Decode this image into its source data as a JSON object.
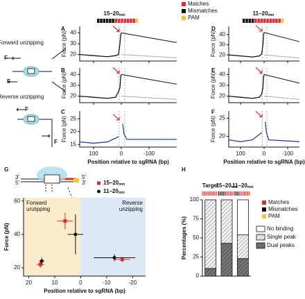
{
  "legend_top": [
    {
      "name": "Matches",
      "color": "#e8262b"
    },
    {
      "name": "Mismatches",
      "color": "#111111"
    },
    {
      "name": "PAM",
      "color": "#f4c431"
    }
  ],
  "schematic": {
    "forward": "Forward unzipping",
    "reverse": "Reverse unzipping",
    "force": "F",
    "three": "3'",
    "five": "5'"
  },
  "constructs": [
    {
      "text": "15–20",
      "sub": "mm"
    },
    {
      "text": "11–20",
      "sub": "mm"
    }
  ],
  "chart_data": [
    {
      "type": "line",
      "label": "A",
      "ylabel": "Force (pN)",
      "xlim": [
        150,
        -200
      ],
      "ylim": [
        14,
        46
      ],
      "yticks": [
        20,
        30,
        40
      ],
      "xticks": [
        100,
        0,
        -100
      ],
      "guides": [
        8,
        -12
      ],
      "x": [
        150,
        100,
        50,
        20,
        10,
        5,
        2,
        0,
        -200
      ],
      "series": [
        {
          "color": "#111111",
          "values": [
            20,
            19,
            18,
            19,
            20,
            30,
            38,
            40,
            null
          ]
        },
        {
          "color": "#111111",
          "values": [
            null,
            null,
            null,
            null,
            null,
            null,
            null,
            40,
            31
          ]
        },
        {
          "color": "#aaaaaa",
          "values": [
            null,
            null,
            null,
            null,
            null,
            null,
            null,
            20,
            17
          ]
        }
      ]
    },
    {
      "type": "line",
      "label": "B",
      "ylabel": "Force (pN)",
      "xlim": [
        150,
        -200
      ],
      "ylim": [
        14,
        46
      ],
      "yticks": [
        20,
        30,
        40
      ],
      "xticks": [
        100,
        0,
        -100
      ],
      "guides": [
        8,
        -12
      ],
      "x": [
        150,
        100,
        50,
        20,
        15,
        10,
        5,
        2,
        0,
        -200
      ],
      "series": [
        {
          "color": "#111111",
          "values": [
            20,
            19,
            18,
            19,
            22,
            24,
            28,
            38,
            40,
            null
          ]
        },
        {
          "color": "#111111",
          "values": [
            null,
            null,
            null,
            null,
            null,
            null,
            null,
            null,
            40,
            31
          ]
        },
        {
          "color": "#aaaaaa",
          "values": [
            null,
            null,
            null,
            null,
            null,
            null,
            null,
            null,
            20,
            17
          ]
        }
      ]
    },
    {
      "type": "line",
      "label": "C",
      "ylabel": "Force (pN)",
      "xlabel": "Position relative to sgRNA (bp)",
      "xlim": [
        150,
        -200
      ],
      "ylim": [
        14,
        28
      ],
      "yticks": [
        15,
        20,
        25
      ],
      "xticks": [
        100,
        0,
        -100
      ],
      "guides": [
        8,
        -12
      ],
      "x": [
        150,
        100,
        50,
        10,
        0,
        -5,
        -10,
        -20,
        -200
      ],
      "series": [
        {
          "color": "#2b3fb5",
          "values": [
            16,
            15.5,
            16,
            18,
            null,
            23,
            19,
            17,
            17
          ]
        },
        {
          "color": "#2b3fb5",
          "values": [
            15,
            null,
            null,
            null,
            24,
            null,
            null,
            null,
            null
          ]
        }
      ]
    },
    {
      "type": "line",
      "label": "D",
      "ylabel": "Force (pN)",
      "xlim": [
        150,
        -150
      ],
      "ylim": [
        14,
        48
      ],
      "yticks": [
        20,
        30,
        40
      ],
      "xticks": [
        100,
        0,
        -100
      ],
      "guides": [
        8,
        -12
      ],
      "x": [
        150,
        100,
        50,
        20,
        10,
        5,
        2,
        0,
        -150
      ],
      "series": [
        {
          "color": "#111111",
          "values": [
            20,
            19,
            18,
            19,
            21,
            30,
            40,
            42,
            null
          ]
        },
        {
          "color": "#111111",
          "values": [
            null,
            null,
            null,
            null,
            null,
            null,
            null,
            42,
            33
          ]
        },
        {
          "color": "#aaaaaa",
          "values": [
            null,
            null,
            null,
            null,
            null,
            null,
            null,
            20,
            17
          ]
        }
      ]
    },
    {
      "type": "line",
      "label": "E",
      "ylabel": "Force (pN)",
      "xlim": [
        150,
        -150
      ],
      "ylim": [
        14,
        46
      ],
      "yticks": [
        20,
        30,
        40
      ],
      "xticks": [
        100,
        0,
        -100
      ],
      "guides": [
        8,
        -12
      ],
      "x": [
        150,
        100,
        50,
        20,
        10,
        5,
        2,
        0,
        -150
      ],
      "series": [
        {
          "color": "#111111",
          "values": [
            20,
            19,
            18,
            19,
            22,
            28,
            38,
            40,
            null
          ]
        },
        {
          "color": "#111111",
          "values": [
            null,
            null,
            null,
            null,
            null,
            null,
            null,
            40,
            32
          ]
        },
        {
          "color": "#aaaaaa",
          "values": [
            null,
            null,
            null,
            null,
            null,
            null,
            null,
            20,
            17
          ]
        }
      ]
    },
    {
      "type": "line",
      "label": "F",
      "ylabel": "Force (pN)",
      "xlabel": "Position relative to sgRNA (bp)",
      "xlim": [
        150,
        -150
      ],
      "ylim": [
        17,
        27
      ],
      "yticks": [
        20,
        25
      ],
      "xticks": [
        100,
        0,
        -100
      ],
      "guides": [
        8,
        -12
      ],
      "x": [
        150,
        100,
        50,
        10,
        0,
        -5,
        -10,
        -20,
        -150
      ],
      "series": [
        {
          "color": "#2b3fb5",
          "values": [
            19,
            18.5,
            19,
            21,
            null,
            24,
            21,
            19,
            18.5
          ]
        },
        {
          "color": "#2b3fb5",
          "values": [
            18,
            null,
            null,
            null,
            25,
            null,
            null,
            null,
            null
          ]
        }
      ]
    },
    {
      "type": "scatter",
      "label": "G",
      "ylabel": "Force (pN)",
      "xlabel": "Position relative to sgRNA (bp)",
      "xlim": [
        22,
        -25
      ],
      "ylim": [
        15,
        62
      ],
      "xticks": [
        20,
        10,
        0,
        -10,
        -20
      ],
      "yticks": [
        20,
        40,
        60
      ],
      "regions": [
        {
          "label": [
            "Forward",
            "unzipping"
          ],
          "color": "#fbeccb"
        },
        {
          "label": [
            "Reverse",
            "unzipping"
          ],
          "color": "#dce8f5"
        }
      ],
      "series": [
        {
          "name": "15–20",
          "name_sub": "mm",
          "color": "#e8262b",
          "marker": "square",
          "x": [
            15.5,
            6,
            -16
          ],
          "values": [
            22,
            48,
            25
          ],
          "xerr": [
            1.5,
            3,
            3
          ],
          "yerr": [
            2,
            5,
            1.5
          ]
        },
        {
          "name": "11–20",
          "name_sub": "mm",
          "color": "#111111",
          "marker": "circle",
          "x": [
            15,
            2,
            -13
          ],
          "values": [
            24,
            40,
            26
          ],
          "xerr": [
            1,
            3,
            8
          ],
          "yerr": [
            2,
            12,
            2
          ]
        }
      ]
    },
    {
      "type": "stacked_bar",
      "label": "H",
      "ylabel": "Percentages (%)",
      "categories": [
        "Target",
        "15–20",
        "11–20"
      ],
      "category_sub": [
        null,
        "mm",
        "mm"
      ],
      "ylim": [
        0,
        100
      ],
      "yticks": [
        0,
        25,
        50,
        75,
        100
      ],
      "series": [
        {
          "name": "Dual peaks",
          "color": "#666666",
          "values": [
            10,
            43,
            23
          ]
        },
        {
          "name": "Single peak",
          "color": "#cccccc",
          "values": [
            90,
            57,
            31
          ]
        },
        {
          "name": "No binding",
          "color": "#ffffff",
          "values": [
            0,
            0,
            46
          ]
        }
      ]
    }
  ]
}
